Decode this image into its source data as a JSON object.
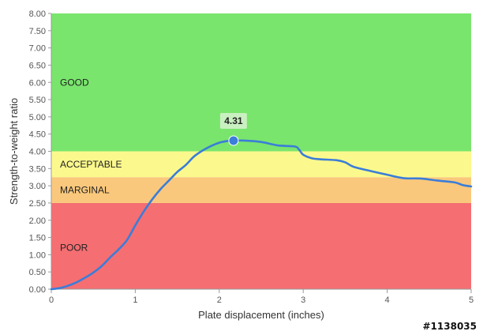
{
  "chart_data": {
    "type": "line",
    "title": "",
    "xlabel": "Plate displacement (inches)",
    "ylabel": "Strength-to-weight ratio",
    "xlim": [
      0,
      5
    ],
    "ylim": [
      0,
      8
    ],
    "x_ticks": [
      "0",
      "1",
      "2",
      "3",
      "4",
      "5"
    ],
    "y_ticks": [
      "0.00",
      "0.50",
      "1.00",
      "1.50",
      "2.00",
      "2.50",
      "3.00",
      "3.50",
      "4.00",
      "4.50",
      "5.00",
      "5.50",
      "6.00",
      "6.50",
      "7.00",
      "7.50",
      "8.00"
    ],
    "grid": false,
    "zones": [
      {
        "label": "POOR",
        "from": 0,
        "to": 2.5,
        "color": "#f56e72"
      },
      {
        "label": "MARGINAL",
        "from": 2.5,
        "to": 3.25,
        "color": "#fac87c"
      },
      {
        "label": "ACCEPTABLE",
        "from": 3.25,
        "to": 4.0,
        "color": "#fbf98d"
      },
      {
        "label": "GOOD",
        "from": 4.0,
        "to": 8.0,
        "color": "#79e56d"
      }
    ],
    "series": [
      {
        "color": "#3b7dd8",
        "x": [
          0,
          0.1,
          0.2,
          0.3,
          0.4,
          0.5,
          0.6,
          0.7,
          0.8,
          0.9,
          1.0,
          1.1,
          1.2,
          1.3,
          1.4,
          1.5,
          1.6,
          1.7,
          1.8,
          1.9,
          2.0,
          2.1,
          2.17,
          2.3,
          2.5,
          2.7,
          2.9,
          2.95,
          3.0,
          3.1,
          3.2,
          3.4,
          3.5,
          3.6,
          3.8,
          4.0,
          4.2,
          4.4,
          4.6,
          4.8,
          4.9,
          5.0
        ],
        "y": [
          0.0,
          0.03,
          0.1,
          0.2,
          0.33,
          0.48,
          0.67,
          0.92,
          1.15,
          1.42,
          1.85,
          2.25,
          2.6,
          2.9,
          3.15,
          3.4,
          3.6,
          3.85,
          4.02,
          4.15,
          4.25,
          4.3,
          4.31,
          4.31,
          4.27,
          4.17,
          4.14,
          4.05,
          3.9,
          3.8,
          3.77,
          3.74,
          3.68,
          3.55,
          3.43,
          3.32,
          3.22,
          3.21,
          3.15,
          3.1,
          3.02,
          2.98
        ]
      }
    ],
    "highlight": {
      "x": 2.17,
      "y": 4.31,
      "label": "4.31"
    }
  },
  "colors": {
    "line": "#3b7dd8",
    "marker": "#3b7dd8",
    "callout_bg": "#c9f0c0",
    "axis": "#9a9a9a"
  },
  "watermark": "#1138035"
}
